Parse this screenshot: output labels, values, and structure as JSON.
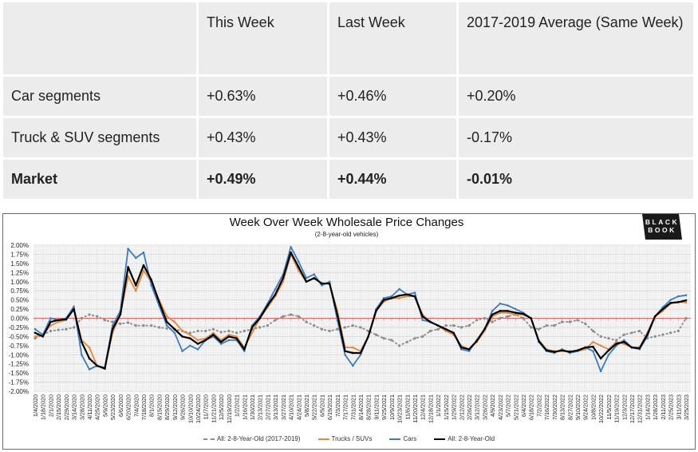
{
  "table": {
    "headers": [
      "",
      "This Week",
      "Last Week",
      "2017-2019 Average (Same Week)"
    ],
    "rows": [
      {
        "label": "Car segments",
        "this_week": "+0.63%",
        "last_week": "+0.46%",
        "avg": "+0.20%",
        "bold": false
      },
      {
        "label": "Truck & SUV segments",
        "this_week": "+0.43%",
        "last_week": "+0.43%",
        "avg": "-0.17%",
        "bold": false
      },
      {
        "label": "Market",
        "this_week": "+0.49%",
        "last_week": "+0.44%",
        "avg": "-0.01%",
        "bold": true
      }
    ]
  },
  "logo": {
    "line1": "BLACK",
    "line2": "BOOK"
  },
  "chart_data": {
    "type": "line",
    "title": "Week Over Week Wholesale Price Changes",
    "subtitle": "(2-8-year-old vehicles)",
    "xlabel": "",
    "ylabel": "",
    "ylim": [
      -2.0,
      2.0
    ],
    "yticks": [
      "2.00%",
      "1.75%",
      "1.50%",
      "1.25%",
      "1.00%",
      "0.75%",
      "0.50%",
      "0.25%",
      "0.00%",
      "-0.25%",
      "-0.50%",
      "-0.75%",
      "-1.00%",
      "-1.25%",
      "-1.50%",
      "-1.75%",
      "-2.00%"
    ],
    "grid": true,
    "legend_position": "bottom",
    "categories": [
      "1/4/2020",
      "1/18/2020",
      "2/1/2020",
      "2/15/2020",
      "2/29/2020",
      "3/14/2020",
      "3/28/2020",
      "4/11/2020",
      "4/25/2020",
      "5/9/2020",
      "5/23/2020",
      "6/6/2020",
      "6/20/2020",
      "7/4/2020",
      "7/18/2020",
      "8/1/2020",
      "8/15/2020",
      "8/29/2020",
      "9/12/2020",
      "9/26/2020",
      "10/10/2020",
      "10/24/2020",
      "11/7/2020",
      "11/21/2020",
      "12/5/2020",
      "12/19/2020",
      "1/2/2021",
      "1/16/2021",
      "1/30/2021",
      "2/13/2021",
      "2/27/2021",
      "3/13/2021",
      "3/27/2021",
      "4/10/2021",
      "4/24/2021",
      "5/8/2021",
      "5/22/2021",
      "6/5/2021",
      "6/19/2021",
      "7/3/2021",
      "7/17/2021",
      "7/31/2021",
      "8/14/2021",
      "8/28/2021",
      "9/11/2021",
      "9/25/2021",
      "10/9/2021",
      "10/23/2021",
      "11/6/2021",
      "11/20/2021",
      "12/4/2021",
      "12/18/2021",
      "1/1/2022",
      "1/15/2022",
      "1/29/2022",
      "2/12/2022",
      "2/26/2022",
      "3/12/2022",
      "3/26/2022",
      "4/9/2022",
      "4/23/2022",
      "5/7/2022",
      "5/21/2022",
      "6/4/2022",
      "6/18/2022",
      "7/2/2022",
      "7/16/2022",
      "7/30/2022",
      "8/13/2022",
      "8/27/2022",
      "9/10/2022",
      "9/24/2022",
      "10/8/2022",
      "10/22/2022",
      "11/5/2022",
      "11/19/2022",
      "12/3/2022",
      "12/17/2022",
      "12/31/2022",
      "1/14/2023",
      "1/28/2023",
      "2/11/2023",
      "2/25/2023",
      "3/11/2023",
      "3/25/2023"
    ],
    "series": [
      {
        "name": "All: 2-8-Year-Old (2017-2019)",
        "color": "#8c8c8c",
        "dashed": true,
        "values": [
          -0.55,
          -0.45,
          -0.35,
          -0.32,
          -0.3,
          -0.25,
          0.0,
          0.1,
          0.05,
          -0.05,
          -0.1,
          -0.15,
          -0.12,
          -0.2,
          -0.2,
          -0.2,
          -0.25,
          -0.28,
          -0.3,
          -0.35,
          -0.4,
          -0.35,
          -0.35,
          -0.3,
          -0.38,
          -0.35,
          -0.4,
          -0.35,
          -0.3,
          -0.25,
          -0.2,
          -0.05,
          0.05,
          0.1,
          0.05,
          -0.1,
          -0.2,
          -0.3,
          -0.35,
          -0.3,
          -0.25,
          -0.2,
          -0.25,
          -0.35,
          -0.45,
          -0.55,
          -0.6,
          -0.75,
          -0.65,
          -0.55,
          -0.5,
          -0.35,
          -0.3,
          -0.2,
          -0.2,
          -0.25,
          -0.2,
          -0.05,
          0.0,
          -0.1,
          0.0,
          0.05,
          0.1,
          0.0,
          -0.25,
          -0.3,
          -0.2,
          -0.2,
          -0.1,
          -0.1,
          -0.05,
          -0.15,
          -0.35,
          -0.5,
          -0.55,
          -0.6,
          -0.45,
          -0.4,
          -0.35,
          -0.55,
          -0.5,
          -0.45,
          -0.4,
          -0.35,
          0.0
        ]
      },
      {
        "name": "Trucks / SUVs",
        "color": "#e8863a",
        "dashed": false,
        "values": [
          -0.5,
          -0.45,
          -0.2,
          -0.1,
          -0.05,
          0.25,
          -0.6,
          -0.8,
          -1.3,
          -1.35,
          -0.4,
          0.1,
          1.15,
          0.75,
          1.3,
          1.0,
          0.5,
          0.05,
          -0.1,
          -0.35,
          -0.45,
          -0.6,
          -0.55,
          -0.4,
          -0.6,
          -0.45,
          -0.5,
          -0.8,
          -0.4,
          0.0,
          0.3,
          0.6,
          1.0,
          1.75,
          1.3,
          1.0,
          1.1,
          0.95,
          0.95,
          0.2,
          -0.8,
          -0.8,
          -0.9,
          -0.5,
          0.2,
          0.45,
          0.55,
          0.55,
          0.6,
          0.6,
          0.1,
          -0.1,
          -0.2,
          -0.35,
          -0.45,
          -0.75,
          -0.85,
          -0.65,
          -0.35,
          0.05,
          0.15,
          0.15,
          0.1,
          0.1,
          0.0,
          -0.6,
          -0.85,
          -0.9,
          -0.9,
          -0.9,
          -0.9,
          -0.85,
          -0.65,
          -0.75,
          -0.85,
          -0.65,
          -0.7,
          -0.8,
          -0.8,
          -0.4,
          0.05,
          0.2,
          0.4,
          0.45,
          0.43
        ]
      },
      {
        "name": "Cars",
        "color": "#3a7cc3",
        "dashed": false,
        "values": [
          -0.3,
          -0.45,
          0.0,
          -0.05,
          0.0,
          0.32,
          -1.0,
          -1.4,
          -1.3,
          -1.35,
          -0.2,
          0.2,
          1.9,
          1.65,
          1.8,
          0.9,
          0.35,
          -0.2,
          -0.4,
          -0.9,
          -0.75,
          -0.85,
          -0.6,
          -0.5,
          -0.7,
          -0.6,
          -0.6,
          -0.9,
          -0.2,
          0.05,
          0.4,
          0.8,
          1.2,
          1.95,
          1.55,
          1.1,
          1.2,
          0.9,
          1.0,
          -0.05,
          -1.0,
          -1.3,
          -1.0,
          -0.5,
          0.25,
          0.55,
          0.6,
          0.8,
          0.65,
          0.7,
          -0.05,
          -0.1,
          -0.2,
          -0.3,
          -0.4,
          -0.85,
          -0.9,
          -0.6,
          -0.3,
          0.2,
          0.4,
          0.35,
          0.25,
          0.15,
          0.0,
          -0.65,
          -0.9,
          -0.95,
          -0.85,
          -0.95,
          -0.9,
          -0.8,
          -0.9,
          -1.45,
          -1.0,
          -0.75,
          -0.6,
          -0.8,
          -0.85,
          -0.5,
          0.05,
          0.3,
          0.5,
          0.6,
          0.63
        ]
      },
      {
        "name": "All: 2-8-Year-Old",
        "color": "#000000",
        "dashed": false,
        "values": [
          -0.4,
          -0.5,
          -0.1,
          -0.05,
          -0.03,
          0.25,
          -0.65,
          -1.1,
          -1.3,
          -1.38,
          -0.3,
          0.1,
          1.4,
          0.9,
          1.45,
          1.05,
          0.45,
          -0.1,
          -0.3,
          -0.5,
          -0.55,
          -0.7,
          -0.6,
          -0.45,
          -0.65,
          -0.5,
          -0.55,
          -0.85,
          -0.25,
          0.0,
          0.35,
          0.65,
          1.1,
          1.8,
          1.4,
          1.0,
          1.1,
          0.95,
          0.95,
          0.1,
          -0.9,
          -0.95,
          -0.95,
          -0.5,
          0.2,
          0.5,
          0.55,
          0.62,
          0.65,
          0.6,
          0.05,
          -0.1,
          -0.2,
          -0.3,
          -0.4,
          -0.8,
          -0.85,
          -0.62,
          -0.3,
          0.1,
          0.2,
          0.2,
          0.15,
          0.12,
          0.0,
          -0.62,
          -0.88,
          -0.92,
          -0.88,
          -0.92,
          -0.88,
          -0.8,
          -0.78,
          -1.1,
          -0.88,
          -0.7,
          -0.65,
          -0.8,
          -0.82,
          -0.45,
          0.05,
          0.25,
          0.42,
          0.44,
          0.49
        ]
      }
    ]
  }
}
